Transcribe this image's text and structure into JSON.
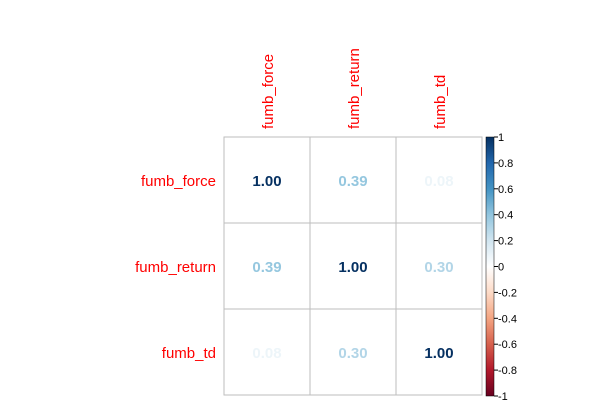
{
  "chart_data": {
    "type": "heatmap",
    "variables": [
      "fumb_force",
      "fumb_return",
      "fumb_td"
    ],
    "matrix": [
      [
        1.0,
        0.39,
        0.08
      ],
      [
        0.39,
        1.0,
        0.3
      ],
      [
        0.08,
        0.3,
        1.0
      ]
    ],
    "value_labels": [
      [
        "1.00",
        "0.39",
        "0.08"
      ],
      [
        "0.39",
        "1.00",
        "0.30"
      ],
      [
        "0.08",
        "0.30",
        "1.00"
      ]
    ],
    "color_range": [
      -1,
      1
    ],
    "colorbar_ticks": [
      "1",
      "0.8",
      "0.6",
      "0.4",
      "0.2",
      "0",
      "-0.2",
      "-0.4",
      "-0.6",
      "-0.8",
      "-1"
    ],
    "colorbar_tick_values": [
      1,
      0.8,
      0.6,
      0.4,
      0.2,
      0,
      -0.2,
      -0.4,
      -0.6,
      -0.8,
      -1
    ],
    "label_color": "#FF0000",
    "grid_color": "#BEBEBE",
    "palette": [
      "#67001F",
      "#B2182B",
      "#D6604D",
      "#F4A582",
      "#FDDBC7",
      "#FFFFFF",
      "#D1E5F0",
      "#92C5DE",
      "#4393C3",
      "#2166AC",
      "#053061"
    ]
  }
}
